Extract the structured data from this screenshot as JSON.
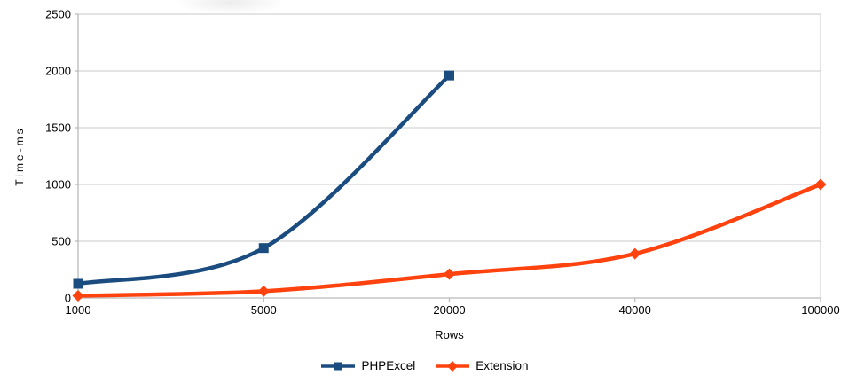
{
  "chart_data": {
    "type": "line",
    "title": "",
    "xlabel": "Rows",
    "ylabel": "Time-ms",
    "categories": [
      "1000",
      "5000",
      "20000",
      "40000",
      "100000"
    ],
    "y_ticks": [
      0,
      500,
      1000,
      1500,
      2000,
      2500
    ],
    "ylim": [
      0,
      2500
    ],
    "grid": "horizontal",
    "smooth": true,
    "legend_position": "bottom",
    "series": [
      {
        "name": "PHPExcel",
        "marker": "square",
        "color": "#1a4c80",
        "values": [
          125,
          440,
          1960,
          null,
          null
        ]
      },
      {
        "name": "Extension",
        "marker": "diamond",
        "color": "#ff420e",
        "values": [
          20,
          60,
          210,
          390,
          1000
        ]
      }
    ]
  },
  "colors": {
    "background": "#ffffff",
    "grid": "#d4d4d4",
    "axis": "#b9b9b9",
    "text": "#000000"
  }
}
